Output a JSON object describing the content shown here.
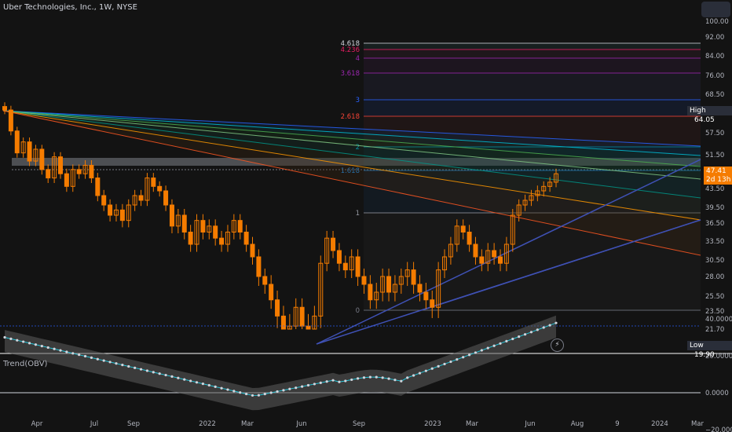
{
  "header": {
    "symbol_title": "Uber Technologies, Inc., 1W, NYSE"
  },
  "indicator": {
    "title": "Trend(OBV)",
    "axis_labels": [
      "40.0000",
      "20.0000",
      "0.0000",
      "−20.0000"
    ],
    "axis_values": [
      40,
      20,
      0,
      -20
    ]
  },
  "price_axis": {
    "labels": [
      "100.00",
      "92.00",
      "84.00",
      "76.00",
      "68.50",
      "57.50",
      "51.50",
      "43.50",
      "39.50",
      "36.50",
      "33.50",
      "30.50",
      "28.00",
      "25.50",
      "23.50",
      "21.70"
    ],
    "values": [
      100.0,
      92.0,
      84.0,
      76.0,
      68.5,
      57.5,
      51.5,
      43.5,
      39.5,
      36.5,
      33.5,
      30.5,
      28.0,
      25.5,
      23.5,
      21.7
    ]
  },
  "time_axis": {
    "labels": [
      "Apr",
      "Jul",
      "Sep",
      "2022",
      "Mar",
      "Jun",
      "Sep",
      "2023",
      "Mar",
      "Jun",
      "Aug",
      "9",
      "2024",
      "Mar"
    ]
  },
  "badges": {
    "high_label": "High",
    "high_value": "64.05",
    "low_label": "Low",
    "low_value": "19.90",
    "last_price": "47.41",
    "countdown": "2d 13h"
  },
  "fib_levels": [
    {
      "label": "4.618",
      "color": "#d1d4dc"
    },
    {
      "label": "4.236",
      "color": "#e91e63"
    },
    {
      "label": "4",
      "color": "#9c27b0"
    },
    {
      "label": "3.618",
      "color": "#9c27b0"
    },
    {
      "label": "3",
      "color": "#2962ff"
    },
    {
      "label": "2.618",
      "color": "#f44336"
    },
    {
      "label": "2",
      "color": "#00bcd4"
    },
    {
      "label": "1.618",
      "color": "#2196f3"
    },
    {
      "label": "1",
      "color": "#9598a1"
    },
    {
      "label": "0",
      "color": "#787b86"
    }
  ],
  "colors": {
    "background": "#131313",
    "candle": "#f57c00",
    "trendline": "#3f51b5",
    "obv_line": "#d1d4dc"
  }
}
